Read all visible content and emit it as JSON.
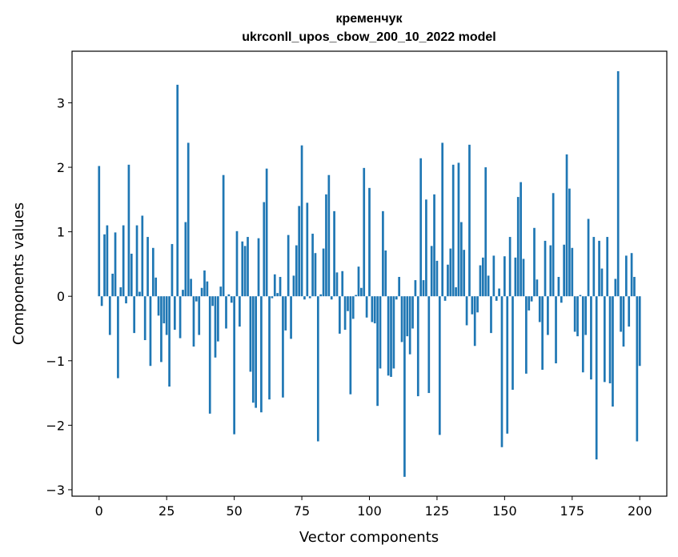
{
  "chart_data": {
    "type": "bar",
    "title_line1": "кременчук",
    "title_line2": "ukrconll_upos_cbow_200_10_2022 model",
    "xlabel": "Vector components",
    "ylabel": "Components values",
    "xlim": [
      -10,
      210
    ],
    "ylim": [
      -3.1,
      3.8
    ],
    "xticks": [
      0,
      25,
      50,
      75,
      100,
      125,
      150,
      175,
      200
    ],
    "yticks": [
      -3,
      -2,
      -1,
      0,
      1,
      2,
      3
    ],
    "xtick_labels": [
      "0",
      "25",
      "50",
      "75",
      "100",
      "125",
      "150",
      "175",
      "200"
    ],
    "ytick_labels": [
      "−3",
      "−2",
      "−1",
      "0",
      "1",
      "2",
      "3"
    ],
    "bar_color": "#1f77b4",
    "values": [
      2.02,
      -0.15,
      0.96,
      1.1,
      -0.6,
      0.35,
      0.99,
      -1.27,
      0.14,
      1.1,
      -0.11,
      2.04,
      0.66,
      -0.57,
      1.1,
      0.07,
      1.25,
      -0.68,
      0.92,
      -1.08,
      0.75,
      0.29,
      -0.3,
      -1.02,
      -0.42,
      -0.6,
      -1.4,
      0.81,
      -0.52,
      3.28,
      -0.65,
      0.1,
      1.15,
      2.38,
      0.27,
      -0.78,
      -0.08,
      -0.6,
      0.13,
      0.4,
      0.23,
      -1.82,
      -0.15,
      -0.95,
      -0.7,
      0.15,
      1.88,
      -0.5,
      0.03,
      -0.1,
      -2.14,
      1.01,
      -0.47,
      0.85,
      0.78,
      0.92,
      -1.17,
      -1.65,
      -1.73,
      0.9,
      -1.8,
      1.46,
      1.98,
      -1.6,
      -0.03,
      0.34,
      0.05,
      0.3,
      -1.57,
      -0.53,
      0.95,
      -0.66,
      0.32,
      0.79,
      1.4,
      2.34,
      -0.05,
      1.45,
      -0.03,
      0.97,
      0.67,
      -2.25,
      0.03,
      0.74,
      1.58,
      1.88,
      -0.05,
      1.32,
      0.37,
      -0.58,
      0.39,
      -0.52,
      -0.23,
      -1.52,
      -0.35,
      0.02,
      0.46,
      0.13,
      1.99,
      -0.33,
      1.68,
      -0.4,
      -0.42,
      -1.7,
      -1.12,
      1.32,
      0.71,
      -1.23,
      -1.25,
      -1.12,
      -0.05,
      0.3,
      -0.71,
      -2.8,
      -0.62,
      -0.9,
      -0.5,
      0.25,
      -1.55,
      2.14,
      0.25,
      1.5,
      -1.5,
      0.78,
      1.58,
      0.55,
      -2.15,
      2.38,
      -0.07,
      0.49,
      0.74,
      2.04,
      0.14,
      2.07,
      1.15,
      0.72,
      -0.45,
      2.35,
      -0.28,
      -0.77,
      -0.25,
      0.48,
      0.6,
      2.0,
      0.32,
      -0.57,
      0.63,
      -0.07,
      0.12,
      -2.34,
      0.62,
      -2.13,
      0.92,
      -1.45,
      0.6,
      1.54,
      1.77,
      0.58,
      -1.2,
      -0.22,
      -0.08,
      1.06,
      0.26,
      -0.4,
      -1.14,
      0.86,
      -0.6,
      0.79,
      1.6,
      -1.04,
      0.3,
      -0.1,
      0.8,
      2.2,
      1.67,
      0.75,
      -0.55,
      -0.62,
      0.02,
      -1.18,
      -0.6,
      1.2,
      -1.29,
      0.92,
      -2.53,
      0.86,
      0.43,
      -1.33,
      0.92,
      -1.35,
      -1.71,
      0.27,
      3.49,
      -0.55,
      -0.78,
      0.63,
      -0.47,
      0.67,
      0.3,
      -2.25,
      -1.08
    ]
  }
}
